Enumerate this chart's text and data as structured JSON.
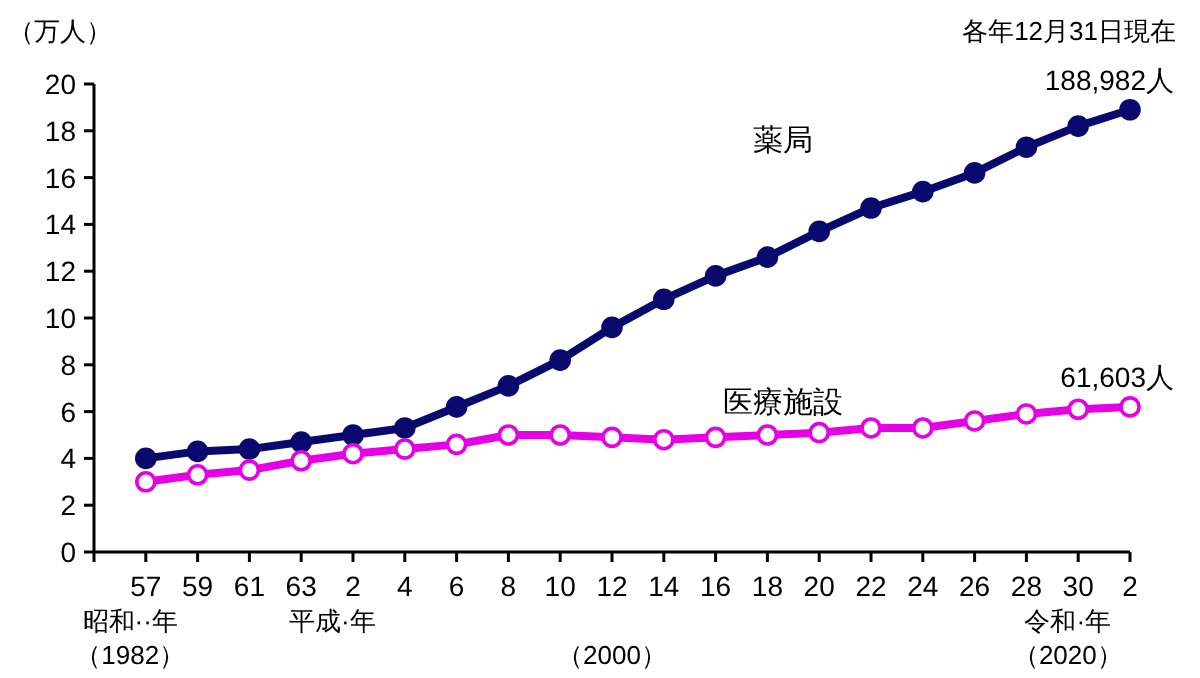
{
  "chart_data": {
    "type": "line",
    "ylabel": "（万人）",
    "categories": [
      "57",
      "59",
      "61",
      "63",
      "2",
      "4",
      "6",
      "8",
      "10",
      "12",
      "14",
      "16",
      "18",
      "20",
      "22",
      "24",
      "26",
      "28",
      "30",
      "2"
    ],
    "series": [
      {
        "name": "薬局",
        "color": "#0a0a6e",
        "marker": "circle",
        "values": [
          4.0,
          4.3,
          4.4,
          4.7,
          5.0,
          5.3,
          6.2,
          7.1,
          8.2,
          9.6,
          10.8,
          11.8,
          12.6,
          13.7,
          14.7,
          15.4,
          16.2,
          17.3,
          18.2,
          18.9
        ]
      },
      {
        "name": "医療施設",
        "color": "#e600e6",
        "marker": "circle",
        "values": [
          3.0,
          3.3,
          3.5,
          3.9,
          4.2,
          4.4,
          4.6,
          5.0,
          5.0,
          4.9,
          4.8,
          4.9,
          5.0,
          5.1,
          5.3,
          5.3,
          5.6,
          5.9,
          6.1,
          6.2
        ]
      }
    ],
    "ylim": [
      0,
      20
    ],
    "yticks": [
      0,
      2,
      4,
      6,
      8,
      10,
      12,
      14,
      16,
      18,
      20
    ],
    "line_style": "solid",
    "grid": false,
    "annotations": [
      "各年12月31日現在",
      "昭和··年",
      "（1982）",
      "平成·年",
      "（2000）",
      "令和·年",
      "（2020）",
      "188,982人",
      "61,603人"
    ]
  }
}
